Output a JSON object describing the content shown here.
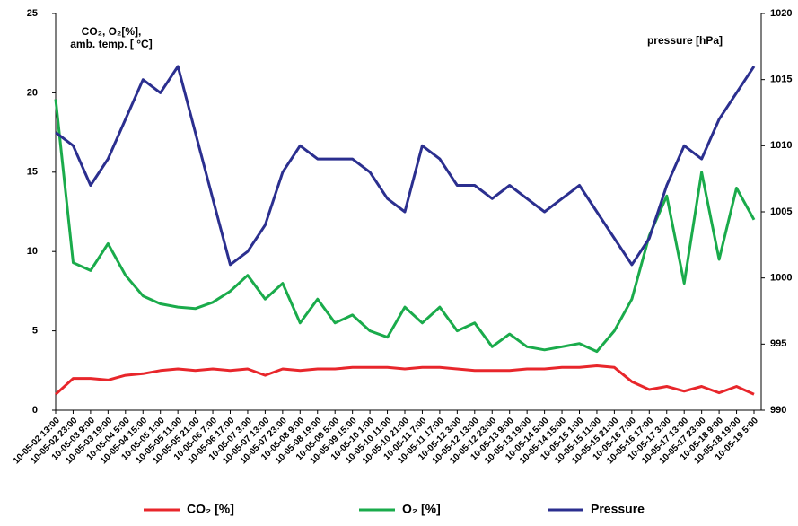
{
  "chart_data": {
    "type": "line",
    "y_label_lines": [
      "CO₂, O₂[%],",
      "amb. temp. [ °C]"
    ],
    "y2_label": "pressure [hPa]",
    "categories": [
      "10-05-02 13:00",
      "10-05-02 23:00",
      "10-05-03 9:00",
      "10-05-03 19:00",
      "10-05-04 5:00",
      "10-05-04 15:00",
      "10-05-05 1:00",
      "10-05-05 11:00",
      "10-05-05 21:00",
      "10-05-06 7:00",
      "10-05-06 17:00",
      "10-05-07 3:00",
      "10-05-07 13:00",
      "10-05-07 23:00",
      "10-05-08 9:00",
      "10-05-08 19:00",
      "10-05-09 5:00",
      "10-05-09 15:00",
      "10-05-10 1:00",
      "10-05-10 11:00",
      "10-05-10 21:00",
      "10-05-11 7:00",
      "10-05-11 17:00",
      "10-05-12 3:00",
      "10-05-12 13:00",
      "10-05-12 23:00",
      "10-05-13 9:00",
      "10-05-13 19:00",
      "10-05-14 5:00",
      "10-05-14 15:00",
      "10-05-15 1:00",
      "10-05-15 11:00",
      "10-05-15 21:00",
      "10-05-16 7:00",
      "10-05-16 17:00",
      "10-05-17 3:00",
      "10-05-17 13:00",
      "10-05-17 23:00",
      "10-05-18 9:00",
      "10-05-18 19:00",
      "10-05-19 5:00"
    ],
    "series": [
      {
        "name": "CO₂ [%]",
        "color": "#e8262b",
        "values": [
          1.0,
          2.0,
          2.0,
          1.9,
          2.2,
          2.3,
          2.5,
          2.6,
          2.5,
          2.6,
          2.5,
          2.6,
          2.2,
          2.6,
          2.5,
          2.6,
          2.6,
          2.7,
          2.7,
          2.7,
          2.6,
          2.7,
          2.7,
          2.6,
          2.5,
          2.5,
          2.5,
          2.6,
          2.6,
          2.7,
          2.7,
          2.8,
          2.7,
          1.8,
          1.3,
          1.5,
          1.2,
          1.5,
          1.1,
          1.5,
          1.0
        ]
      },
      {
        "name": "O₂ [%]",
        "color": "#1aab4b",
        "values": [
          19.6,
          9.3,
          8.8,
          10.5,
          8.5,
          7.2,
          6.7,
          6.5,
          6.4,
          6.8,
          7.5,
          8.5,
          7.0,
          8.0,
          5.5,
          7.0,
          5.5,
          6.0,
          5.0,
          4.6,
          6.5,
          5.5,
          6.5,
          5.0,
          5.5,
          4.0,
          4.8,
          4.0,
          3.8,
          4.0,
          4.2,
          3.7,
          5.0,
          7.0,
          11.0,
          13.5,
          8.0,
          15.0,
          9.5,
          14.0,
          12.0
        ]
      },
      {
        "name": "Pressure",
        "color": "#2b2f8f",
        "axis": "y2",
        "values": [
          1011,
          1010,
          1007,
          1009,
          1012,
          1015,
          1014,
          1016,
          1011,
          1006,
          1001,
          1002,
          1004,
          1008,
          1010,
          1009,
          1009,
          1009,
          1008,
          1006,
          1005,
          1010,
          1009,
          1007,
          1007,
          1006,
          1007,
          1006,
          1005,
          1006,
          1007,
          1005,
          1003,
          1001,
          1003,
          1007,
          1010,
          1009,
          1012,
          1014,
          1016
        ]
      }
    ],
    "ylim": [
      0,
      25
    ],
    "yticks": [
      0,
      5,
      10,
      15,
      20,
      25
    ],
    "y2lim": [
      990,
      1020
    ],
    "y2ticks": [
      990,
      995,
      1000,
      1005,
      1010,
      1015,
      1020
    ],
    "grid": false
  }
}
